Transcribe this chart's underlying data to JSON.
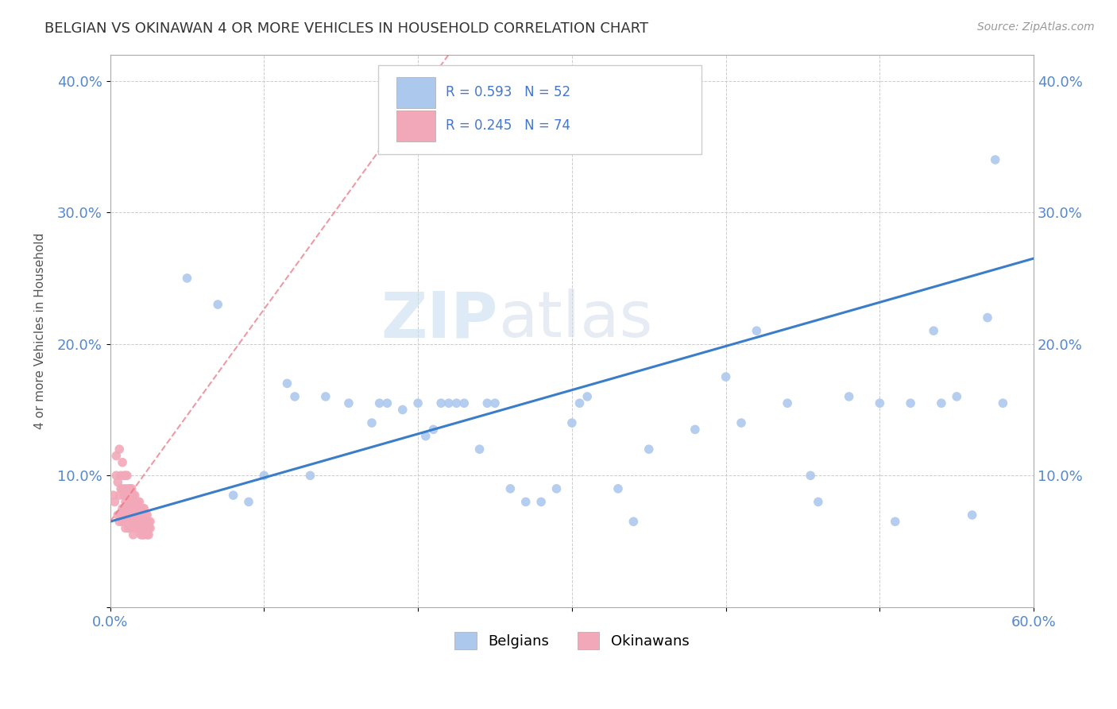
{
  "title": "BELGIAN VS OKINAWAN 4 OR MORE VEHICLES IN HOUSEHOLD CORRELATION CHART",
  "source": "Source: ZipAtlas.com",
  "ylabel_label": "4 or more Vehicles in Household",
  "xlim": [
    0.0,
    0.6
  ],
  "ylim": [
    0.0,
    0.42
  ],
  "belgian_R": 0.593,
  "belgian_N": 52,
  "okinawan_R": 0.245,
  "okinawan_N": 74,
  "belgian_color": "#adc8ed",
  "okinawan_color": "#f2a8b8",
  "trend_color_belgian": "#3a7dc9",
  "trend_color_okinawan": "#e87080",
  "watermark_zip": "ZIP",
  "watermark_atlas": "atlas",
  "bel_trend_x0": 0.0,
  "bel_trend_y0": 0.065,
  "bel_trend_x1": 0.6,
  "bel_trend_y1": 0.265,
  "oki_trend_x0": 0.0,
  "oki_trend_y0": 0.065,
  "oki_trend_x1": 0.22,
  "oki_trend_y1": 0.42,
  "bel_x": [
    0.05,
    0.07,
    0.08,
    0.09,
    0.1,
    0.115,
    0.12,
    0.13,
    0.14,
    0.155,
    0.17,
    0.175,
    0.18,
    0.19,
    0.2,
    0.205,
    0.21,
    0.215,
    0.22,
    0.225,
    0.23,
    0.24,
    0.245,
    0.25,
    0.26,
    0.27,
    0.28,
    0.29,
    0.3,
    0.305,
    0.31,
    0.33,
    0.34,
    0.35,
    0.38,
    0.4,
    0.41,
    0.42,
    0.44,
    0.455,
    0.46,
    0.48,
    0.5,
    0.51,
    0.52,
    0.535,
    0.54,
    0.55,
    0.56,
    0.57,
    0.575,
    0.58
  ],
  "bel_y": [
    0.25,
    0.23,
    0.085,
    0.08,
    0.1,
    0.17,
    0.16,
    0.1,
    0.16,
    0.155,
    0.14,
    0.155,
    0.155,
    0.15,
    0.155,
    0.13,
    0.135,
    0.155,
    0.155,
    0.155,
    0.155,
    0.12,
    0.155,
    0.155,
    0.09,
    0.08,
    0.08,
    0.09,
    0.14,
    0.155,
    0.16,
    0.09,
    0.065,
    0.12,
    0.135,
    0.175,
    0.14,
    0.21,
    0.155,
    0.1,
    0.08,
    0.16,
    0.155,
    0.065,
    0.155,
    0.21,
    0.155,
    0.16,
    0.07,
    0.22,
    0.34,
    0.155
  ],
  "oki_x": [
    0.002,
    0.003,
    0.004,
    0.004,
    0.005,
    0.005,
    0.006,
    0.006,
    0.006,
    0.007,
    0.007,
    0.007,
    0.008,
    0.008,
    0.008,
    0.008,
    0.009,
    0.009,
    0.009,
    0.009,
    0.01,
    0.01,
    0.01,
    0.01,
    0.01,
    0.011,
    0.011,
    0.011,
    0.012,
    0.012,
    0.012,
    0.012,
    0.013,
    0.013,
    0.013,
    0.013,
    0.014,
    0.014,
    0.014,
    0.015,
    0.015,
    0.015,
    0.015,
    0.016,
    0.016,
    0.016,
    0.017,
    0.017,
    0.017,
    0.018,
    0.018,
    0.018,
    0.019,
    0.019,
    0.019,
    0.02,
    0.02,
    0.02,
    0.021,
    0.021,
    0.021,
    0.022,
    0.022,
    0.022,
    0.023,
    0.023,
    0.024,
    0.024,
    0.024,
    0.025,
    0.025,
    0.025,
    0.026,
    0.026
  ],
  "oki_y": [
    0.085,
    0.08,
    0.1,
    0.115,
    0.07,
    0.095,
    0.12,
    0.085,
    0.065,
    0.1,
    0.09,
    0.07,
    0.11,
    0.09,
    0.075,
    0.065,
    0.1,
    0.085,
    0.075,
    0.065,
    0.1,
    0.09,
    0.08,
    0.07,
    0.06,
    0.1,
    0.085,
    0.075,
    0.09,
    0.08,
    0.07,
    0.06,
    0.09,
    0.08,
    0.07,
    0.06,
    0.09,
    0.08,
    0.065,
    0.085,
    0.075,
    0.065,
    0.055,
    0.085,
    0.075,
    0.065,
    0.08,
    0.07,
    0.06,
    0.08,
    0.07,
    0.06,
    0.08,
    0.07,
    0.06,
    0.075,
    0.065,
    0.055,
    0.075,
    0.065,
    0.055,
    0.075,
    0.065,
    0.055,
    0.07,
    0.06,
    0.07,
    0.06,
    0.055,
    0.065,
    0.06,
    0.055,
    0.065,
    0.06
  ]
}
